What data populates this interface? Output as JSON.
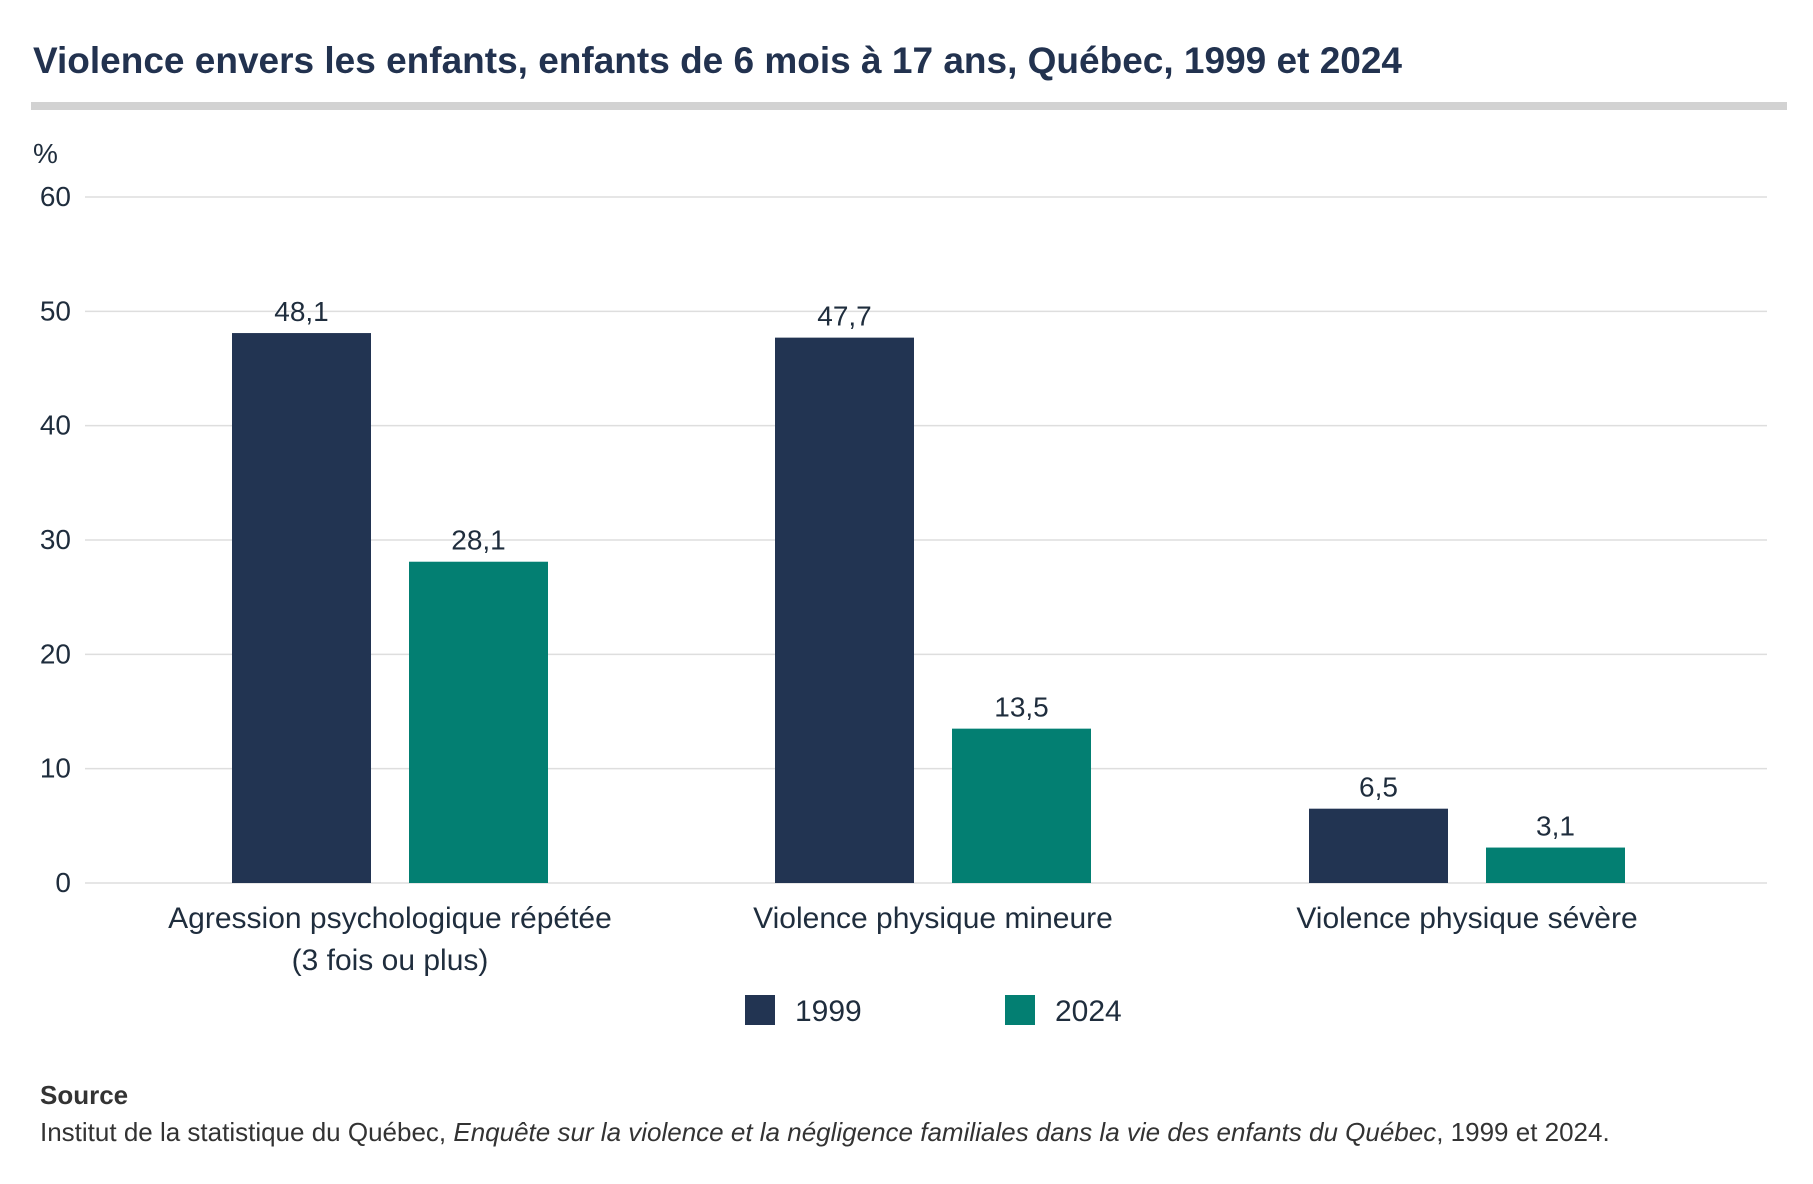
{
  "title": "Violence envers les enfants, enfants de 6 mois à 17 ans, Québec, 1999 et 2024",
  "colors": {
    "series_1999": "#223452",
    "series_2024": "#037f72",
    "grid": "#dedede",
    "text": "#1f2d3d"
  },
  "chart_data": {
    "type": "bar",
    "title": "Violence envers les enfants, enfants de 6 mois à 17 ans, Québec, 1999 et 2024",
    "ylabel": "%",
    "xlabel": "",
    "ylim": [
      0,
      60
    ],
    "yticks": [
      "0",
      "10",
      "20",
      "30",
      "40",
      "50",
      "60"
    ],
    "categories": [
      [
        "Agression psychologique répétée",
        "(3 fois ou plus)"
      ],
      [
        "Violence physique mineure"
      ],
      [
        "Violence physique sévère"
      ]
    ],
    "series": [
      {
        "name": "1999",
        "values": [
          48.1,
          47.7,
          6.5
        ],
        "labels": [
          "48,1",
          "47,7",
          "6,5"
        ]
      },
      {
        "name": "2024",
        "values": [
          28.1,
          13.5,
          3.1
        ],
        "labels": [
          "28,1",
          "13,5",
          "3,1"
        ]
      }
    ],
    "grid": true,
    "legend": "bottom-center"
  },
  "source": {
    "label": "Source",
    "prefix": "Institut de la statistique du Québec, ",
    "italic": "Enquête sur la violence et la négligence familiales dans la vie des enfants du Québec",
    "suffix": ", 1999 et 2024."
  }
}
